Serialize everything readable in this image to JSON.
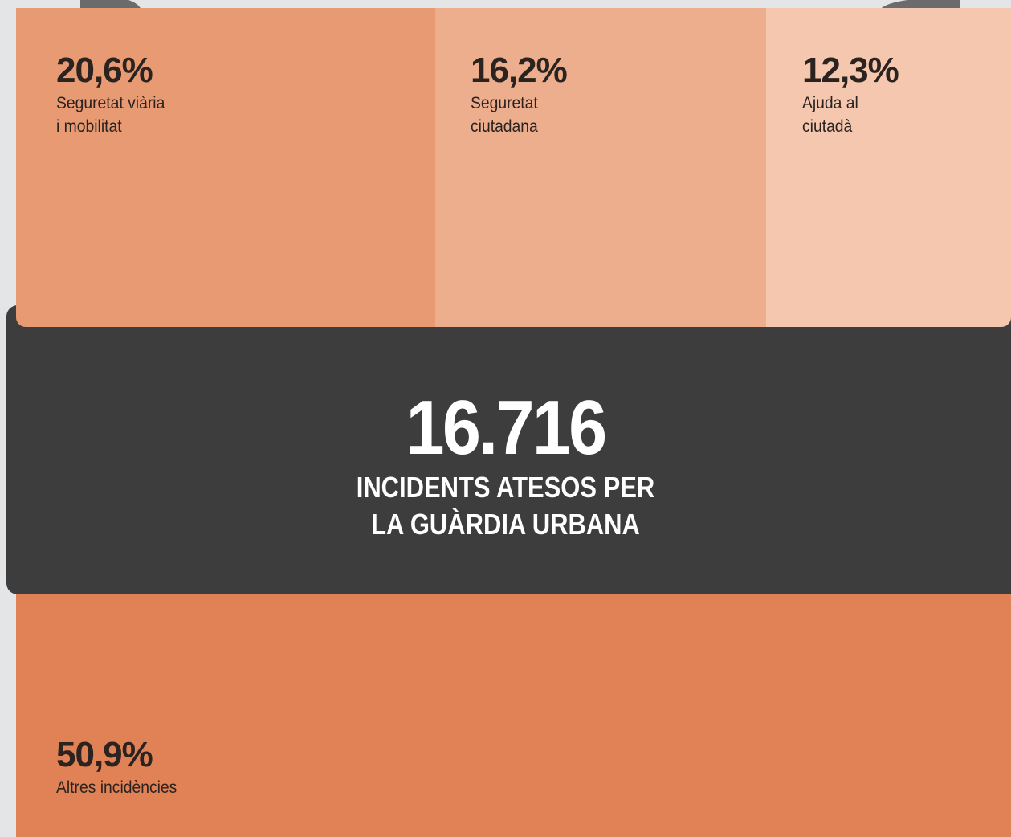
{
  "tiles": [
    {
      "value": "20,6%",
      "label": [
        "Seguretat viària",
        "i mobilitat"
      ]
    },
    {
      "value": "16,2%",
      "label": [
        "Seguretat",
        "ciutadana"
      ]
    },
    {
      "value": "12,3%",
      "label": [
        "Ajuda al",
        "ciutadà"
      ]
    },
    {
      "value": "50,9%",
      "label": [
        "Altres incidències"
      ]
    }
  ],
  "total": {
    "value": "16.716",
    "label": [
      "INCIDENTS ATESOS PER",
      "LA GUÀRDIA URBANA"
    ]
  }
}
